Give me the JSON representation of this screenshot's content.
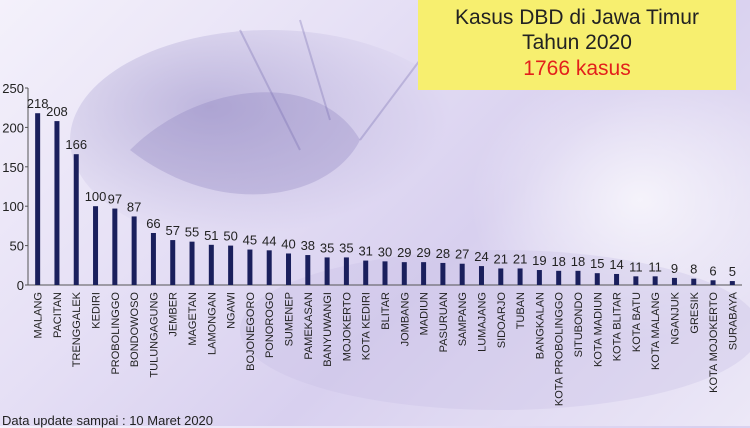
{
  "header": {
    "line1": "Kasus DBD di Jawa Timur",
    "line2": "Tahun 2020",
    "line3": "1766 kasus"
  },
  "footer": {
    "text": "Data update sampai : 10 Maret 2020"
  },
  "colors": {
    "bar": "#1a1f5c",
    "title_bg": "#f7ef6f",
    "total_text": "#e3201b"
  },
  "chart_data": {
    "type": "bar",
    "categories": [
      "MALANG",
      "PACITAN",
      "TRENGGALEK",
      "KEDIRI",
      "PROBOLINGGO",
      "BONDOWOSO",
      "TULUNGAGUNG",
      "JEMBER",
      "MAGETAN",
      "LAMONGAN",
      "NGAWI",
      "BOJONEGORO",
      "PONOROGO",
      "SUMENEP",
      "PAMEKASAN",
      "BANYUWANGI",
      "MOJOKERTO",
      "KOTA KEDIRI",
      "BLITAR",
      "JOMBANG",
      "MADIUN",
      "PASURUAN",
      "SAMPANG",
      "LUMAJANG",
      "SIDOARJO",
      "TUBAN",
      "BANGKALAN",
      "KOTA PROBOLINGGO",
      "SITUBONDO",
      "KOTA MADIUN",
      "KOTA BLITAR",
      "KOTA BATU",
      "KOTA MALANG",
      "NGANJUK",
      "GRESIK",
      "KOTA MOJOKERTO",
      "SURABAYA"
    ],
    "values": [
      218,
      208,
      166,
      100,
      97,
      87,
      66,
      57,
      55,
      51,
      50,
      45,
      44,
      40,
      38,
      35,
      35,
      31,
      30,
      29,
      29,
      28,
      27,
      24,
      21,
      21,
      19,
      18,
      18,
      15,
      14,
      11,
      11,
      9,
      8,
      6,
      5
    ],
    "yticks": [
      0,
      50,
      100,
      150,
      200,
      250
    ],
    "ylim": [
      0,
      250
    ],
    "title": "Kasus DBD di Jawa Timur",
    "xlabel": "",
    "ylabel": ""
  }
}
